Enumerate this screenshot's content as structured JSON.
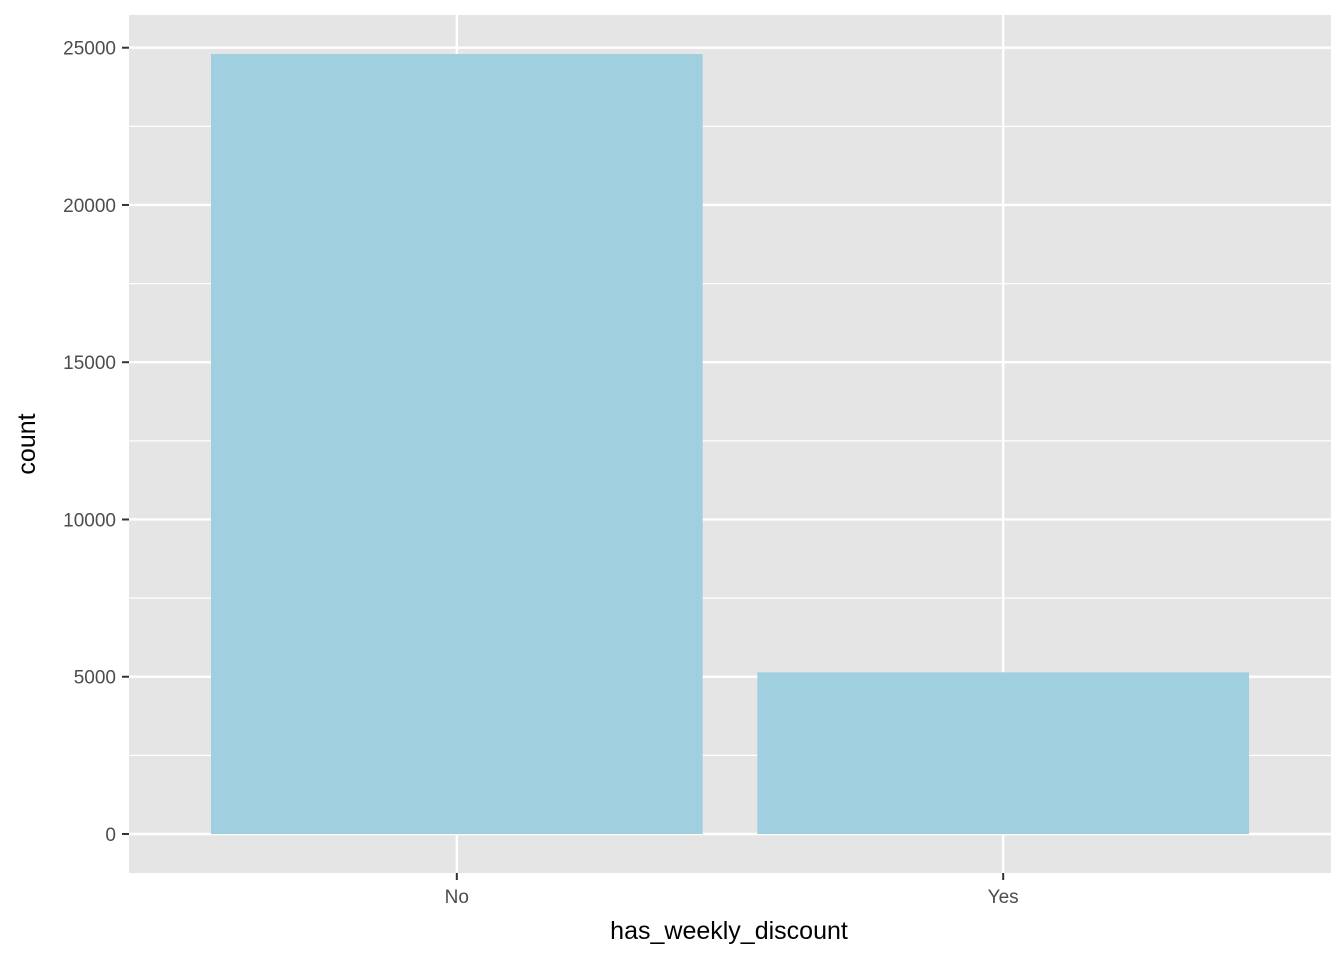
{
  "chart_data": {
    "type": "bar",
    "title": "",
    "xlabel": "has_weekly_discount",
    "ylabel": "count",
    "categories": [
      "No",
      "Yes"
    ],
    "values": [
      24800,
      5140
    ],
    "ylim": [
      -1240,
      26040
    ],
    "yticks": [
      0,
      5000,
      10000,
      15000,
      20000,
      25000
    ],
    "grid": true,
    "legend": "none",
    "bar_color": "#a0cfe0",
    "panel_background": "#e5e5e5",
    "grid_color": "#ffffff"
  }
}
